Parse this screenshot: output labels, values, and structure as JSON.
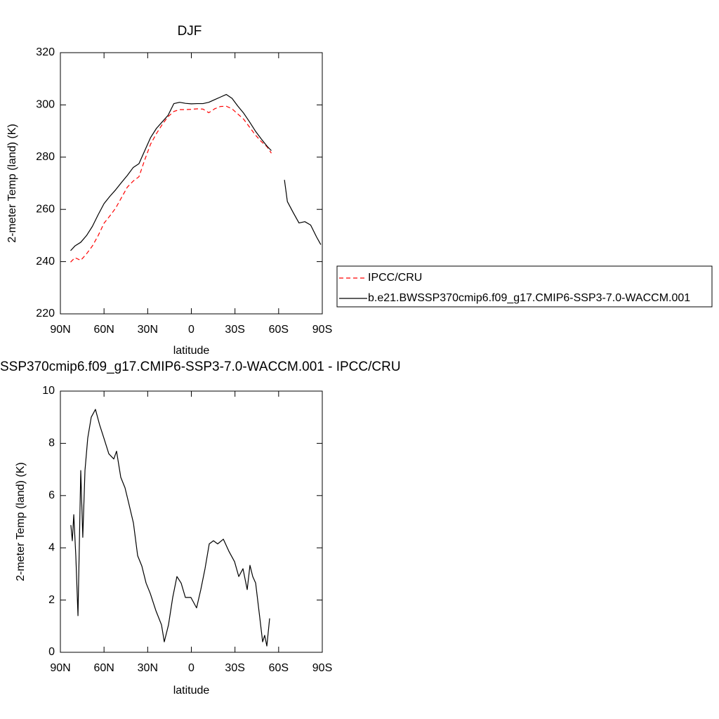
{
  "chart_data": [
    {
      "type": "line",
      "title": "DJF",
      "xlabel": "latitude",
      "ylabel": "2-meter Temp (land) (K)",
      "x": [
        83,
        80,
        76,
        72,
        68,
        64,
        60,
        56,
        52,
        48,
        44,
        40,
        36,
        32,
        28,
        24,
        20,
        16,
        12,
        8,
        4,
        0,
        -4,
        -8,
        -12,
        -16,
        -20,
        -24,
        -28,
        -32,
        -36,
        -40,
        -44,
        -48,
        -52,
        -55,
        -60,
        -64,
        -66,
        -70,
        -74,
        -78,
        -82,
        -86,
        -89
      ],
      "series": [
        {
          "name": "IPCC/CRU",
          "color": "#ff0000",
          "dashed": true,
          "values": [
            239.8,
            241.5,
            240.5,
            243,
            246,
            250,
            254.7,
            257.5,
            260.5,
            264.5,
            268.5,
            270.8,
            272.5,
            279,
            285,
            289,
            292.5,
            295.5,
            297.5,
            298.2,
            298.2,
            298.3,
            298.5,
            298.4,
            297,
            298.5,
            299.4,
            299.5,
            298.5,
            296.5,
            294.5,
            291.5,
            288.5,
            286,
            284,
            281.5,
            null,
            null,
            null,
            null,
            null,
            null,
            null,
            null,
            null
          ]
        },
        {
          "name": "b.e21.BWSSP370cmip6.f09_g17.CMIP6-SSP3-7.0-WACCM.001",
          "color": "#000000",
          "dashed": false,
          "values": [
            244.2,
            246,
            247.4,
            250,
            253.5,
            258,
            262.2,
            265,
            267.5,
            270.3,
            273,
            276,
            277.5,
            282.5,
            287.5,
            291,
            293.5,
            296,
            300.5,
            301,
            300.6,
            300.4,
            300.5,
            300.5,
            301,
            302,
            303,
            304,
            302.5,
            299.5,
            296.8,
            293.5,
            290,
            287,
            284.2,
            282.5,
            null,
            271.3,
            263,
            258.8,
            254.8,
            255.3,
            254,
            249.5,
            246.5
          ]
        }
      ],
      "xlim": [
        90,
        -90
      ],
      "xticks": [
        {
          "value": 90,
          "label": "90N"
        },
        {
          "value": 60,
          "label": "60N"
        },
        {
          "value": 30,
          "label": "30N"
        },
        0,
        {
          "value": -30,
          "label": "30S"
        },
        {
          "value": -60,
          "label": "60S"
        },
        {
          "value": -90,
          "label": "90S"
        }
      ],
      "ylim": [
        220,
        320
      ],
      "yticks": [
        220,
        240,
        260,
        280,
        300,
        320
      ],
      "legend": "right"
    },
    {
      "type": "line",
      "title": "SSP370cmip6.f09_g17.CMIP6-SSP3-7.0-WACCM.001 - IPCC/CRU",
      "xlabel": "latitude",
      "ylabel": "2-meter Temp (land) (K)",
      "x": [
        82.8,
        81.8,
        80.8,
        79.4,
        77.9,
        76,
        74.6,
        73.1,
        71.2,
        68.8,
        65.9,
        63,
        60.1,
        56.7,
        53.3,
        51.4,
        48.5,
        45.6,
        43.2,
        39.8,
        36.9,
        34,
        31.1,
        28.2,
        24.4,
        20.5,
        18.6,
        15.7,
        12.8,
        9.9,
        7,
        4.1,
        0.3,
        -3.6,
        -6.5,
        -9.4,
        -12.3,
        -15.2,
        -18.1,
        -22,
        -25.8,
        -29.7,
        -32.6,
        -35.5,
        -38.4,
        -40.3,
        -42.2,
        -44.2,
        -47.1,
        -49,
        -50.4,
        -51.9,
        -53.8
      ],
      "series": [
        {
          "color": "#000000",
          "dashed": false,
          "values": [
            4.87,
            4.27,
            5.27,
            3.7,
            1.4,
            6.96,
            4.4,
            6.96,
            8.2,
            9.0,
            9.3,
            8.7,
            8.2,
            7.6,
            7.4,
            7.7,
            6.7,
            6.3,
            5.75,
            4.95,
            3.7,
            3.3,
            2.65,
            2.25,
            1.6,
            1.05,
            0.4,
            1.05,
            2.1,
            2.9,
            2.65,
            2.1,
            2.1,
            1.7,
            2.4,
            3.2,
            4.15,
            4.27,
            4.15,
            4.33,
            3.87,
            3.47,
            2.9,
            3.2,
            2.4,
            3.33,
            2.9,
            2.65,
            1.3,
            0.4,
            0.65,
            0.24,
            1.3
          ]
        }
      ],
      "xlim": [
        90,
        -90
      ],
      "xticks": [
        {
          "value": 90,
          "label": "90N"
        },
        {
          "value": 60,
          "label": "60N"
        },
        {
          "value": 30,
          "label": "30N"
        },
        0,
        {
          "value": -30,
          "label": "30S"
        },
        {
          "value": -60,
          "label": "60S"
        },
        {
          "value": -90,
          "label": "90S"
        }
      ],
      "ylim": [
        0,
        10
      ],
      "yticks": [
        0,
        2,
        4,
        6,
        8,
        10
      ]
    }
  ]
}
